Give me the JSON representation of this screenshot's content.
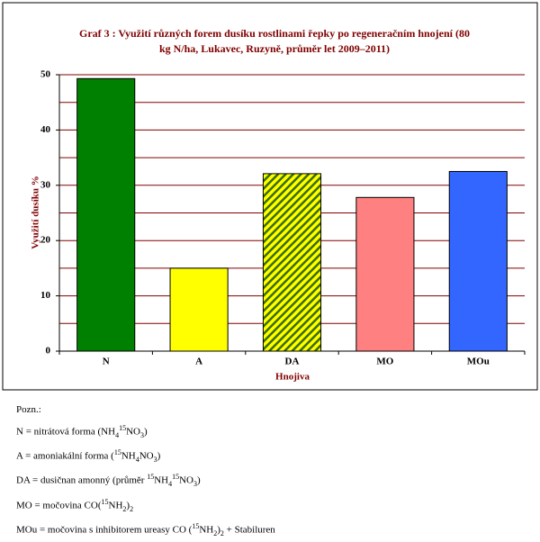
{
  "chart_data": {
    "type": "bar",
    "title": [
      "Graf 3 : Využití různých forem dusíku rostlinami řepky po regeneračním hnojení (80",
      "kg N/ha, Lukavec, Ruzyně, průměr let 2009–2011)"
    ],
    "ylabel": "Využití dusíku %",
    "xlabel": "Hnojiva",
    "categories": [
      "N",
      "A",
      "DA",
      "MO",
      "MOu"
    ],
    "values": [
      49.3,
      15,
      32.1,
      27.8,
      32.5
    ],
    "colors": [
      "#008000",
      "#ffff00",
      "#ffff00",
      "#ff8080",
      "#3366ff"
    ],
    "hatch": [
      null,
      null,
      "#3a6b00",
      null,
      null
    ],
    "ylim": [
      0,
      50
    ],
    "yticks": [
      0,
      10,
      20,
      30,
      40,
      50
    ],
    "minor_yticks": [
      5,
      15,
      25,
      35,
      45
    ],
    "grid": true
  },
  "notes": {
    "heading": "Pozn.:",
    "lines": [
      [
        {
          "text": "N = nitrátová forma (NH"
        },
        {
          "text": "4",
          "pos": "sub"
        },
        {
          "text": "15",
          "pos": "sup"
        },
        {
          "text": "NO"
        },
        {
          "text": "3",
          "pos": "sub"
        },
        {
          "text": ")"
        }
      ],
      [
        {
          "text": "A = amoniakální forma ("
        },
        {
          "text": "15",
          "pos": "sup"
        },
        {
          "text": "NH"
        },
        {
          "text": "4",
          "pos": "sub"
        },
        {
          "text": "NO"
        },
        {
          "text": "3",
          "pos": "sub"
        },
        {
          "text": ")"
        }
      ],
      [
        {
          "text": "DA = dusičnan amonný (průměr "
        },
        {
          "text": "15",
          "pos": "sup"
        },
        {
          "text": "NH"
        },
        {
          "text": "4",
          "pos": "sub"
        },
        {
          "text": "15",
          "pos": "sup"
        },
        {
          "text": "NO"
        },
        {
          "text": "3",
          "pos": "sub"
        },
        {
          "text": ")"
        }
      ],
      [
        {
          "text": "MO = močovina CO("
        },
        {
          "text": "15",
          "pos": "sup"
        },
        {
          "text": "NH"
        },
        {
          "text": "2",
          "pos": "sub"
        },
        {
          "text": ")"
        },
        {
          "text": "2",
          "pos": "sub"
        }
      ],
      [
        {
          "text": "MOu = močovina s inhibitorem ureasy CO ("
        },
        {
          "text": "15",
          "pos": "sup"
        },
        {
          "text": "NH"
        },
        {
          "text": "2",
          "pos": "sub"
        },
        {
          "text": ")"
        },
        {
          "text": "2",
          "pos": "sub"
        },
        {
          "text": " + Stabiluren"
        }
      ]
    ]
  }
}
